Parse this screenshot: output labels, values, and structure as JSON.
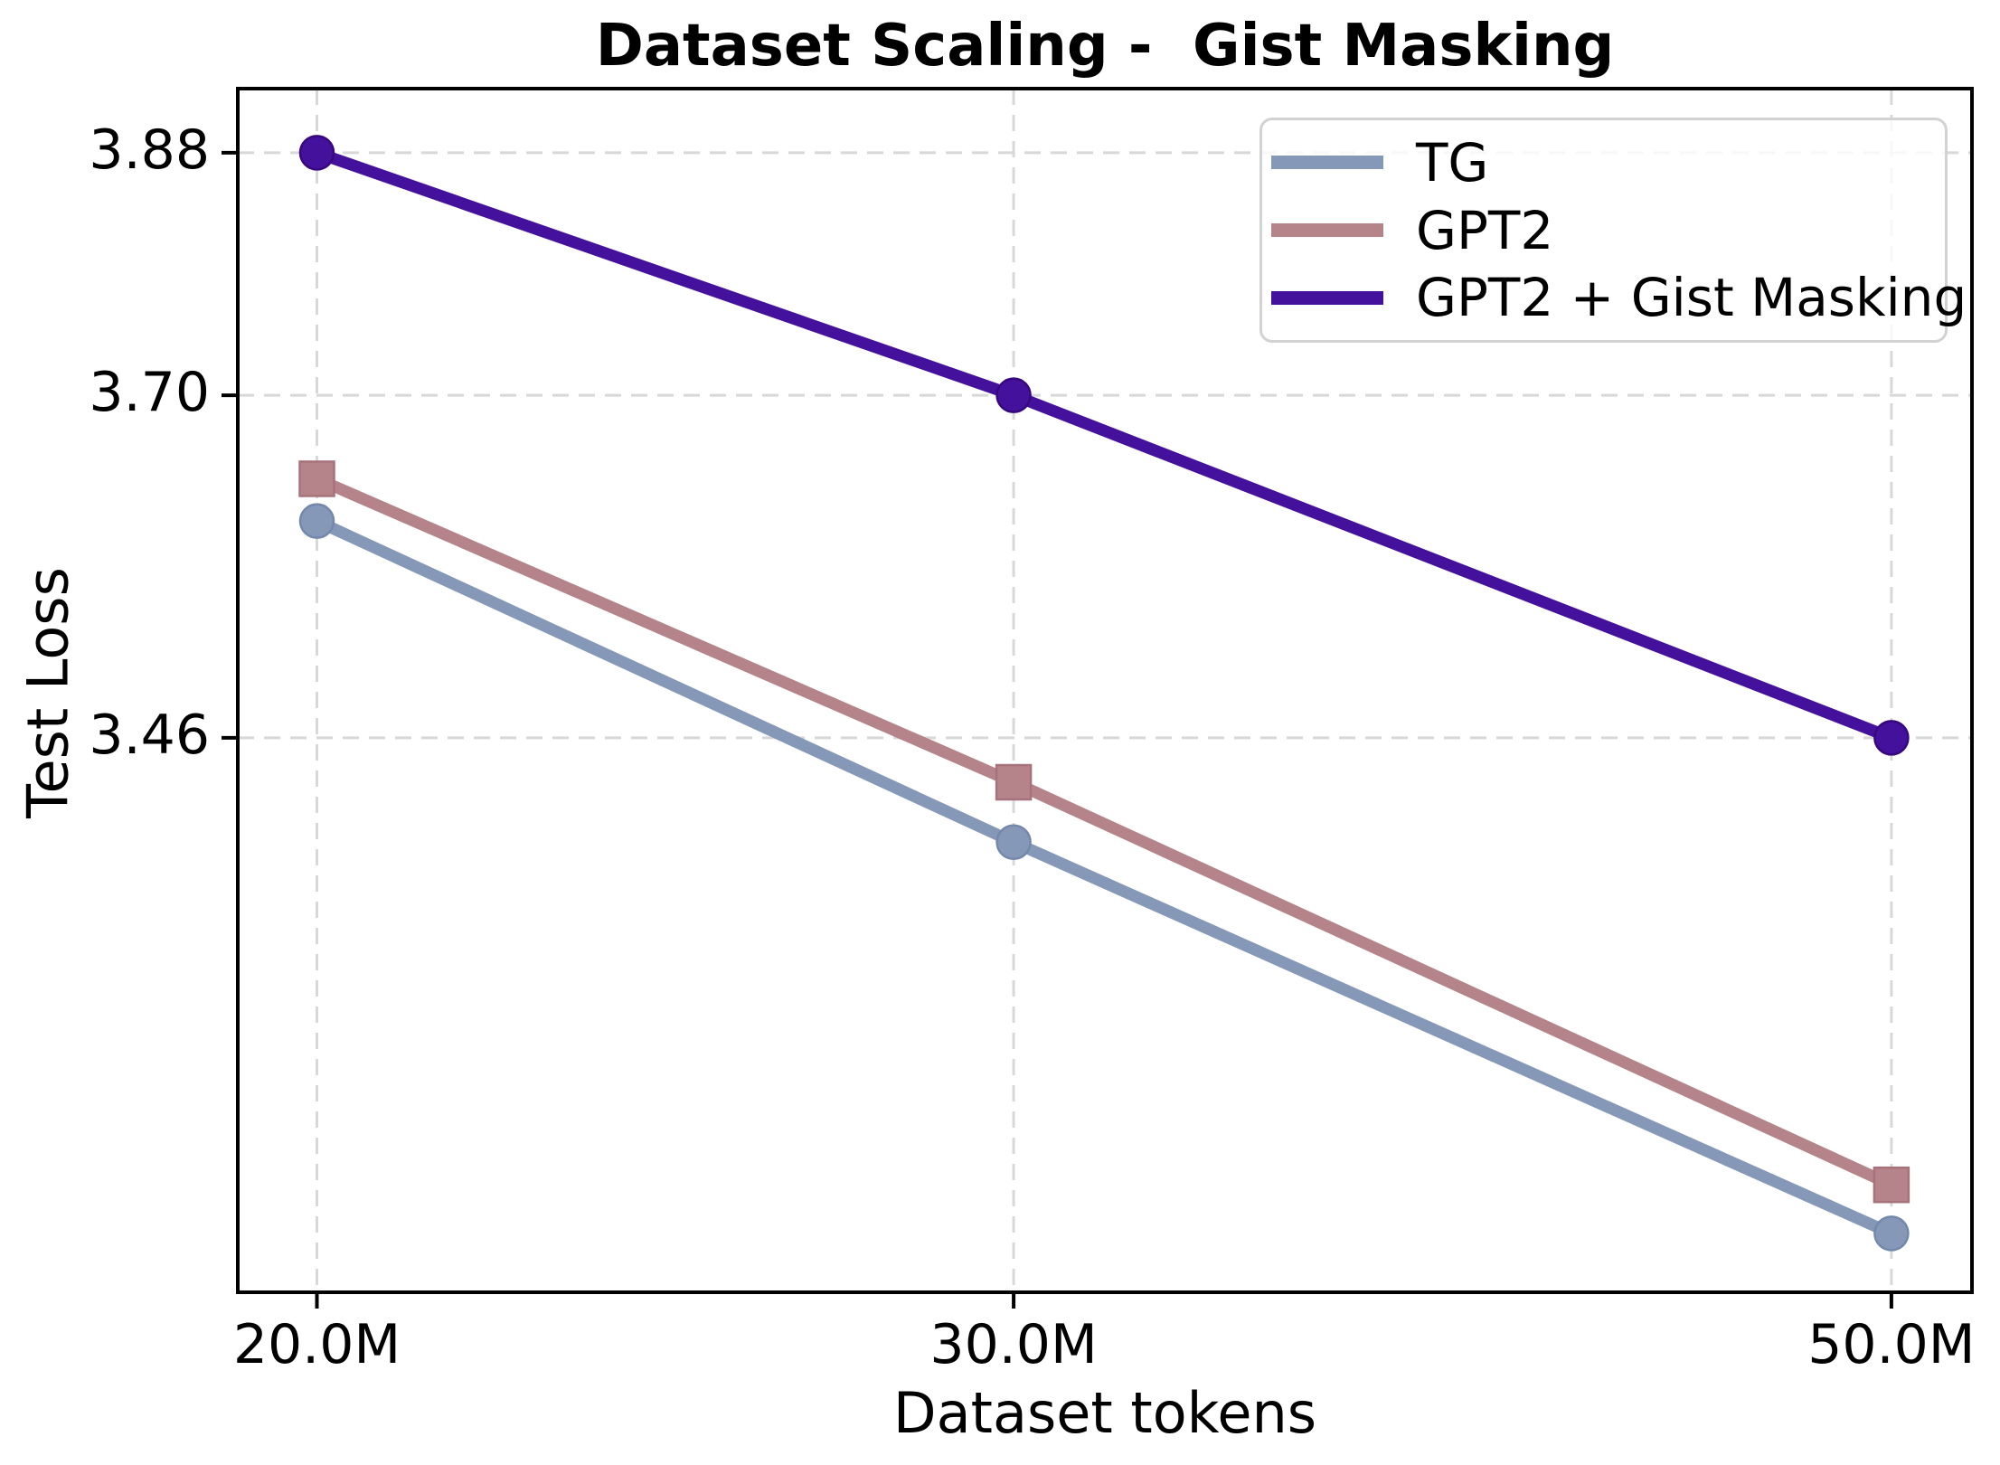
{
  "figure": {
    "background": "#ffffff"
  },
  "chart_data": {
    "type": "line",
    "title": "Dataset Scaling -  Gist Masking",
    "xlabel": "Dataset tokens",
    "ylabel": "Test Loss",
    "x_scale": "log",
    "y_scale": "log",
    "x": [
      20000000,
      30000000,
      50000000
    ],
    "x_tick_labels": [
      "20.0M",
      "30.0M",
      "50.0M"
    ],
    "y_ticks": [
      3.88,
      3.7,
      3.46
    ],
    "y_tick_labels": [
      "3.88",
      "3.70",
      "3.46"
    ],
    "xlim": [
      19100000,
      52400000
    ],
    "ylim": [
      3.104,
      3.929
    ],
    "grid": true,
    "grid_color": "#d8d8d8",
    "axis_color": "#000000",
    "legend_position": "upper right",
    "series": [
      {
        "name": "TG",
        "color": "#8598b8",
        "edge_color": "#7388ab",
        "marker": "circle",
        "values": [
          3.61,
          3.39,
          3.14
        ]
      },
      {
        "name": "GPT2",
        "color": "#b5838a",
        "edge_color": "#a6737c",
        "marker": "square",
        "values": [
          3.64,
          3.43,
          3.17
        ]
      },
      {
        "name": "GPT2 + Gist Masking",
        "color": "#44119c",
        "edge_color": "#37077f",
        "marker": "circle",
        "values": [
          3.88,
          3.7,
          3.46
        ]
      }
    ]
  }
}
